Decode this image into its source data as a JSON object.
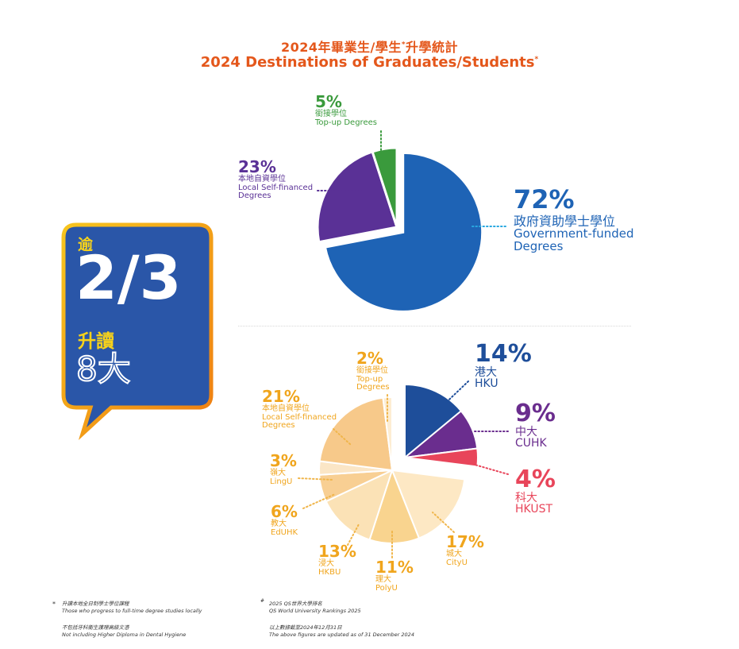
{
  "title": {
    "zh": "2024年畢業生/學生",
    "zh_mark": "*",
    "zh_suffix": "升學統計",
    "en": "2024 Destinations of Graduates/Students",
    "en_mark": "*"
  },
  "badge": {
    "over": "逾",
    "fraction": "2/3",
    "study": "升讀",
    "universities": "8大",
    "colors": {
      "fill": "#2a56a8",
      "border": "#f4a11d",
      "highlight": "#f7d21a"
    }
  },
  "chart_data": [
    {
      "type": "pie",
      "slices": [
        {
          "label_zh": "政府資助學士學位",
          "label_en": "Government-funded Degrees",
          "value": 72,
          "pct": "72%",
          "color": "#1e63b5"
        },
        {
          "label_zh": "本地自資學位",
          "label_en": "Local Self-financed Degrees",
          "value": 23,
          "pct": "23%",
          "color": "#5a3196"
        },
        {
          "label_zh": "銜接學位",
          "label_en": "Top-up Degrees",
          "value": 5,
          "pct": "5%",
          "color": "#3a9a3c"
        }
      ]
    },
    {
      "type": "pie",
      "slices": [
        {
          "label_zh": "港大",
          "label_en": "HKU",
          "value": 14,
          "pct": "14%",
          "color": "#1e4e9a"
        },
        {
          "label_zh": "中大",
          "label_en": "CUHK",
          "value": 9,
          "pct": "9%",
          "color": "#6a2d8e"
        },
        {
          "label_zh": "科大",
          "label_en": "HKUST",
          "value": 4,
          "pct": "4%",
          "color": "#e8455a"
        },
        {
          "label_zh": "城大",
          "label_en": "CityU",
          "value": 17,
          "pct": "17%",
          "color": "#fde8c4"
        },
        {
          "label_zh": "理大",
          "label_en": "PolyU",
          "value": 11,
          "pct": "11%",
          "color": "#f9d48f"
        },
        {
          "label_zh": "浸大",
          "label_en": "HKBU",
          "value": 13,
          "pct": "13%",
          "color": "#fbe2b6"
        },
        {
          "label_zh": "教大",
          "label_en": "EdUHK",
          "value": 6,
          "pct": "6%",
          "color": "#f8cf93"
        },
        {
          "label_zh": "嶺大",
          "label_en": "LingU",
          "value": 3,
          "pct": "3%",
          "color": "#fbe6c6"
        },
        {
          "label_zh": "本地自資學位",
          "label_en": "Local Self-financed Degrees",
          "value": 21,
          "pct": "21%",
          "color": "#f7c98a"
        },
        {
          "label_zh": "銜接學位",
          "label_en": "Top-up Degrees",
          "value": 2,
          "pct": "2%",
          "color": "#fdedd2"
        }
      ]
    }
  ],
  "notes": {
    "n1_mark": "*",
    "n1_zh": "升讀本地全日制學士學位課程",
    "n1_en": "Those who progress to full-time degree studies locally",
    "n2_zh": "不包括牙科衞生護理高級文憑",
    "n2_en": "Not including Higher Diploma in Dental Hygiene",
    "n3_mark": "#",
    "n3_zh": "2025 QS世界大學排名",
    "n3_en": "QS World University Rankings 2025",
    "n4_zh": "以上數據截至2024年12月31日",
    "n4_en": "The above figures are updated as of 31 December 2024"
  }
}
